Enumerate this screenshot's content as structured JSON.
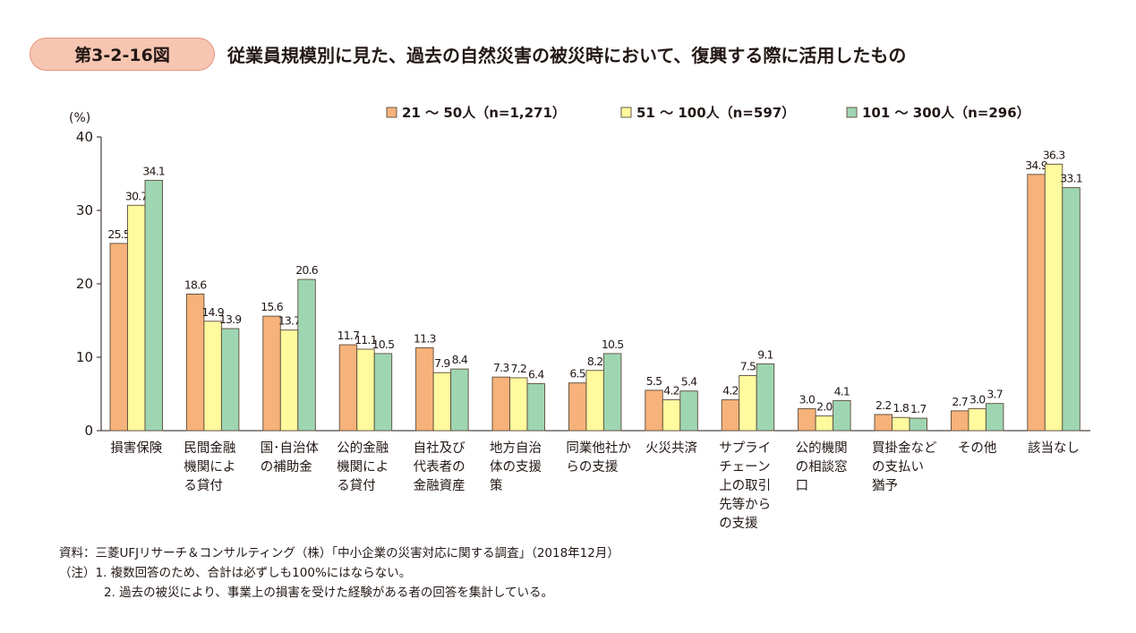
{
  "figure": {
    "number": "第3-2-16図",
    "title": "従業員規模別に見た、過去の自然災害の被災時において、復興する際に活用したもの"
  },
  "chart_data": {
    "type": "bar",
    "ylabel": "(%)",
    "ylim": [
      0,
      40
    ],
    "yticks": [
      0,
      10,
      20,
      30,
      40
    ],
    "legend_position": "top-right",
    "categories": [
      [
        "損害保険"
      ],
      [
        "民間金融",
        "機関によ",
        "る貸付"
      ],
      [
        "国･自治体",
        "の補助金"
      ],
      [
        "公的金融",
        "機関によ",
        "る貸付"
      ],
      [
        "自社及び",
        "代表者の",
        "金融資産"
      ],
      [
        "地方自治",
        "体の支援",
        "策"
      ],
      [
        "同業他社か",
        "らの支援"
      ],
      [
        "火災共済"
      ],
      [
        "サプライ",
        "チェーン",
        "上の取引",
        "先等から",
        "の支援"
      ],
      [
        "公的機関",
        "の相談窓",
        "口"
      ],
      [
        "買掛金など",
        "の支払い",
        "猶予"
      ],
      [
        "その他"
      ],
      [
        "該当なし"
      ]
    ],
    "series": [
      {
        "name": "21 〜 50人（n=1,271）",
        "color": "#f6b27a",
        "values": [
          25.5,
          18.6,
          15.6,
          11.7,
          11.3,
          7.3,
          6.5,
          5.5,
          4.2,
          3.0,
          2.2,
          2.7,
          34.9
        ]
      },
      {
        "name": "51 〜 100人（n=597）",
        "color": "#fffa9e",
        "values": [
          30.7,
          14.9,
          13.7,
          11.1,
          7.9,
          7.2,
          8.2,
          4.2,
          7.5,
          2.0,
          1.8,
          3.0,
          36.3
        ]
      },
      {
        "name": "101 〜 300人（n=296）",
        "color": "#9fd6b2",
        "values": [
          34.1,
          13.9,
          20.6,
          10.5,
          8.4,
          6.4,
          10.5,
          5.4,
          9.1,
          4.1,
          1.7,
          3.7,
          33.1
        ]
      }
    ]
  },
  "notes": {
    "source": "資料：三菱UFJリサーチ＆コンサルティング（株）「中小企業の災害対応に関する調査」（2018年12月）",
    "note1": "（注）1. 複数回答のため、合計は必ずしも100%にはならない。",
    "note2": "2. 過去の被災により、事業上の損害を受けた経験がある者の回答を集計している。"
  }
}
